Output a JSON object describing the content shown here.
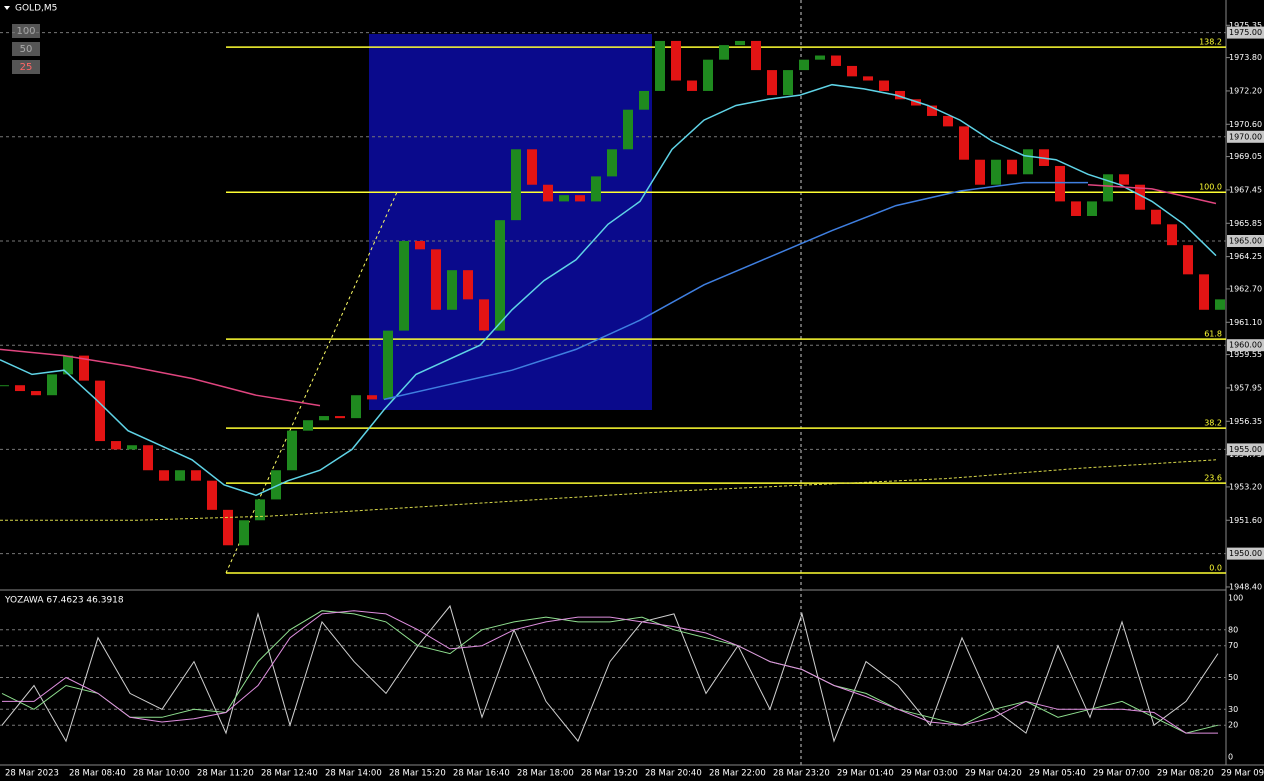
{
  "window": {
    "symbol": "GOLD,M5",
    "buttons": [
      "100",
      "50",
      "25"
    ]
  },
  "chart_data": [
    {
      "type": "candlestick",
      "values": [
        1958.08,
        1957.8,
        1957.6,
        1958.6,
        1959.5,
        1958.3,
        1955.4,
        1955.0,
        1955.2,
        1954.0,
        1953.5,
        1954.0,
        1953.5,
        1952.1,
        1950.4,
        1951.6,
        1952.6,
        1954.0,
        1955.9,
        1956.4,
        1956.6,
        1956.5,
        1957.6,
        1957.4,
        1960.7,
        1965.0,
        1964.6,
        1961.7,
        1963.6,
        1962.2,
        1960.7,
        1966.0,
        1969.4,
        1967.7,
        1966.9,
        1967.2,
        1966.9,
        1968.1,
        1969.4,
        1971.3,
        1972.2,
        1974.6,
        1972.7,
        1972.2,
        1973.7,
        1974.4,
        1974.6,
        1973.2,
        1972.0,
        1973.2,
        1973.7,
        1973.9,
        1973.4,
        1972.9,
        1972.7,
        1972.2,
        1971.8,
        1971.5,
        1971.0,
        1970.5,
        1968.9,
        1967.7,
        1968.9,
        1968.2,
        1969.4,
        1968.6,
        1966.9,
        1966.2,
        1966.9,
        1968.2,
        1967.7,
        1966.5,
        1965.8,
        1964.8,
        1963.4,
        1961.7,
        1962.2
      ],
      "up_color": "#1f8a1f",
      "down_color": "#e31414",
      "series": [
        {
          "color": "#5fd3e6",
          "values": [
            1959.3,
            1958.6,
            1958.8,
            1957.4,
            1955.9,
            1955.2,
            1954.5,
            1953.3,
            1952.8,
            1953.5,
            1954.0,
            1955.0,
            1956.9,
            1958.6,
            1959.3,
            1960.0,
            1961.7,
            1963.1,
            1964.1,
            1965.8,
            1966.9,
            1969.4,
            1970.8,
            1971.5,
            1971.8,
            1972.0,
            1972.5,
            1972.3,
            1972.0,
            1971.5,
            1970.8,
            1969.8,
            1969.1,
            1968.9,
            1968.2,
            1967.7,
            1966.9,
            1965.8,
            1964.3
          ]
        },
        {
          "color": "#3f7fe0",
          "values": [
            null,
            null,
            null,
            null,
            null,
            null,
            1957.4,
            1958.1,
            1958.8,
            1959.8,
            1961.2,
            1962.9,
            1964.2,
            1965.5,
            1966.7,
            1967.4,
            1967.8,
            1967.8,
            null,
            null
          ]
        },
        {
          "color": "#e0457f",
          "values": [
            1959.8,
            1959.5,
            1959.0,
            1958.4,
            1957.6,
            1957.1,
            null,
            null,
            null,
            null,
            null,
            null,
            null,
            null,
            null,
            null,
            null,
            1967.7,
            1967.5,
            1966.8
          ]
        },
        {
          "color": "#d8d84a",
          "values": [
            1951.6,
            1951.6,
            1951.8,
            1952.2,
            1952.6,
            1953.0,
            1953.3,
            1953.6,
            1954.1,
            1954.5
          ]
        }
      ],
      "ylim": [
        1948.35,
        1975.7
      ],
      "yticks": [
        1975.35,
        {
          "value": 1973.8,
          "label": "1973.80"
        },
        {
          "value": 1972.2,
          "label": "1972.20"
        },
        {
          "value": 1970.6,
          "label": "1970.60"
        },
        1969.05,
        1967.45,
        1965.85,
        1964.25,
        {
          "value": 1962.7,
          "label": "1962.70"
        },
        {
          "value": 1961.1,
          "label": "1961.10"
        },
        1959.55,
        1957.95,
        1956.35,
        1954.75,
        {
          "value": 1953.2,
          "label": "1953.20"
        },
        {
          "value": 1951.6,
          "label": "1951.60"
        },
        {
          "value": 1948.4,
          "label": "1948.40"
        }
      ],
      "price_levels": [
        {
          "value": 1975,
          "label": "1975.00"
        },
        {
          "value": 1970,
          "label": "1970.00"
        },
        {
          "value": 1965,
          "label": "1965.00"
        },
        {
          "value": 1960,
          "label": "1960.00"
        },
        {
          "value": 1955,
          "label": "1955.00"
        },
        {
          "value": 1950,
          "label": "1950.00"
        }
      ],
      "fib_levels": [
        {
          "value": 1974.3,
          "label": "138.2"
        },
        {
          "value": 1967.34,
          "label": "100.0"
        },
        {
          "value": 1960.29,
          "label": "61.8"
        },
        {
          "value": 1956.02,
          "label": "38.2"
        },
        {
          "value": 1953.38,
          "label": "23.6"
        },
        {
          "value": 1949.07,
          "label": "0.0"
        }
      ],
      "fib_color": "#ffff33",
      "xticklabels": [
        "28 Mar 2023",
        "28 Mar 08:40",
        "28 Mar 10:00",
        "28 Mar 11:20",
        "28 Mar 12:40",
        "28 Mar 14:00",
        "28 Mar 15:20",
        "28 Mar 16:40",
        "28 Mar 18:00",
        "28 Mar 19:20",
        "28 Mar 20:40",
        "28 Mar 22:00",
        "28 Mar 23:20",
        "29 Mar 01:40",
        "29 Mar 03:00",
        "29 Mar 04:20",
        "29 Mar 05:40",
        "29 Mar 07:00",
        "29 Mar 08:20",
        "29 Mar 09:0"
      ]
    },
    {
      "type": "line",
      "title": "YOZAWA 67.4623 46.3918",
      "series": [
        {
          "color": "#d0d0d0",
          "values": [
            20,
            45,
            10,
            75,
            40,
            30,
            60,
            15,
            90,
            20,
            85,
            60,
            40,
            70,
            95,
            25,
            80,
            35,
            10,
            60,
            85,
            90,
            40,
            70,
            30,
            90,
            10,
            60,
            45,
            20,
            75,
            30,
            15,
            70,
            25,
            85,
            20,
            35,
            65
          ]
        },
        {
          "color": "#8fe08f",
          "values": [
            40,
            30,
            45,
            40,
            25,
            25,
            30,
            28,
            60,
            80,
            92,
            90,
            85,
            70,
            65,
            80,
            85,
            88,
            85,
            85,
            88,
            80,
            75,
            70,
            60,
            55,
            45,
            40,
            30,
            25,
            20,
            30,
            35,
            25,
            30,
            35,
            25,
            15,
            20
          ]
        },
        {
          "color": "#e08fe0",
          "values": [
            35,
            35,
            50,
            40,
            25,
            22,
            24,
            28,
            45,
            75,
            90,
            92,
            90,
            80,
            68,
            70,
            80,
            85,
            88,
            88,
            85,
            82,
            78,
            70,
            60,
            55,
            45,
            38,
            30,
            22,
            20,
            25,
            35,
            30,
            30,
            30,
            28,
            15,
            15
          ]
        }
      ],
      "ylim": [
        0,
        100
      ],
      "yticks": [
        100,
        80,
        70,
        50,
        30,
        20,
        0
      ],
      "levels": [
        80,
        70,
        50,
        30,
        20
      ]
    }
  ]
}
